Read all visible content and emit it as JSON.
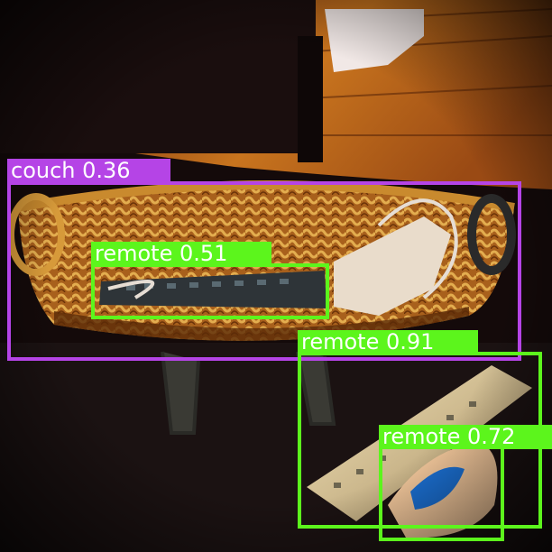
{
  "scene": {
    "objects": [
      "dark wooden floor",
      "wicker basket",
      "tv remote",
      "white cable",
      "white appliance",
      "remote on floor",
      "wii remote"
    ]
  },
  "colors": {
    "couch": "#b544e6",
    "remote": "#5cf51c"
  },
  "detections": [
    {
      "class": "couch",
      "score": "0.36",
      "label": "couch 0.36",
      "color": "#b544e6"
    },
    {
      "class": "remote",
      "score": "0.51",
      "label": "remote 0.51",
      "color": "#5cf51c"
    },
    {
      "class": "remote",
      "score": "0.91",
      "label": "remote 0.91",
      "color": "#5cf51c"
    },
    {
      "class": "remote",
      "score": "0.72",
      "label": "remote 0.72",
      "color": "#5cf51c"
    }
  ]
}
